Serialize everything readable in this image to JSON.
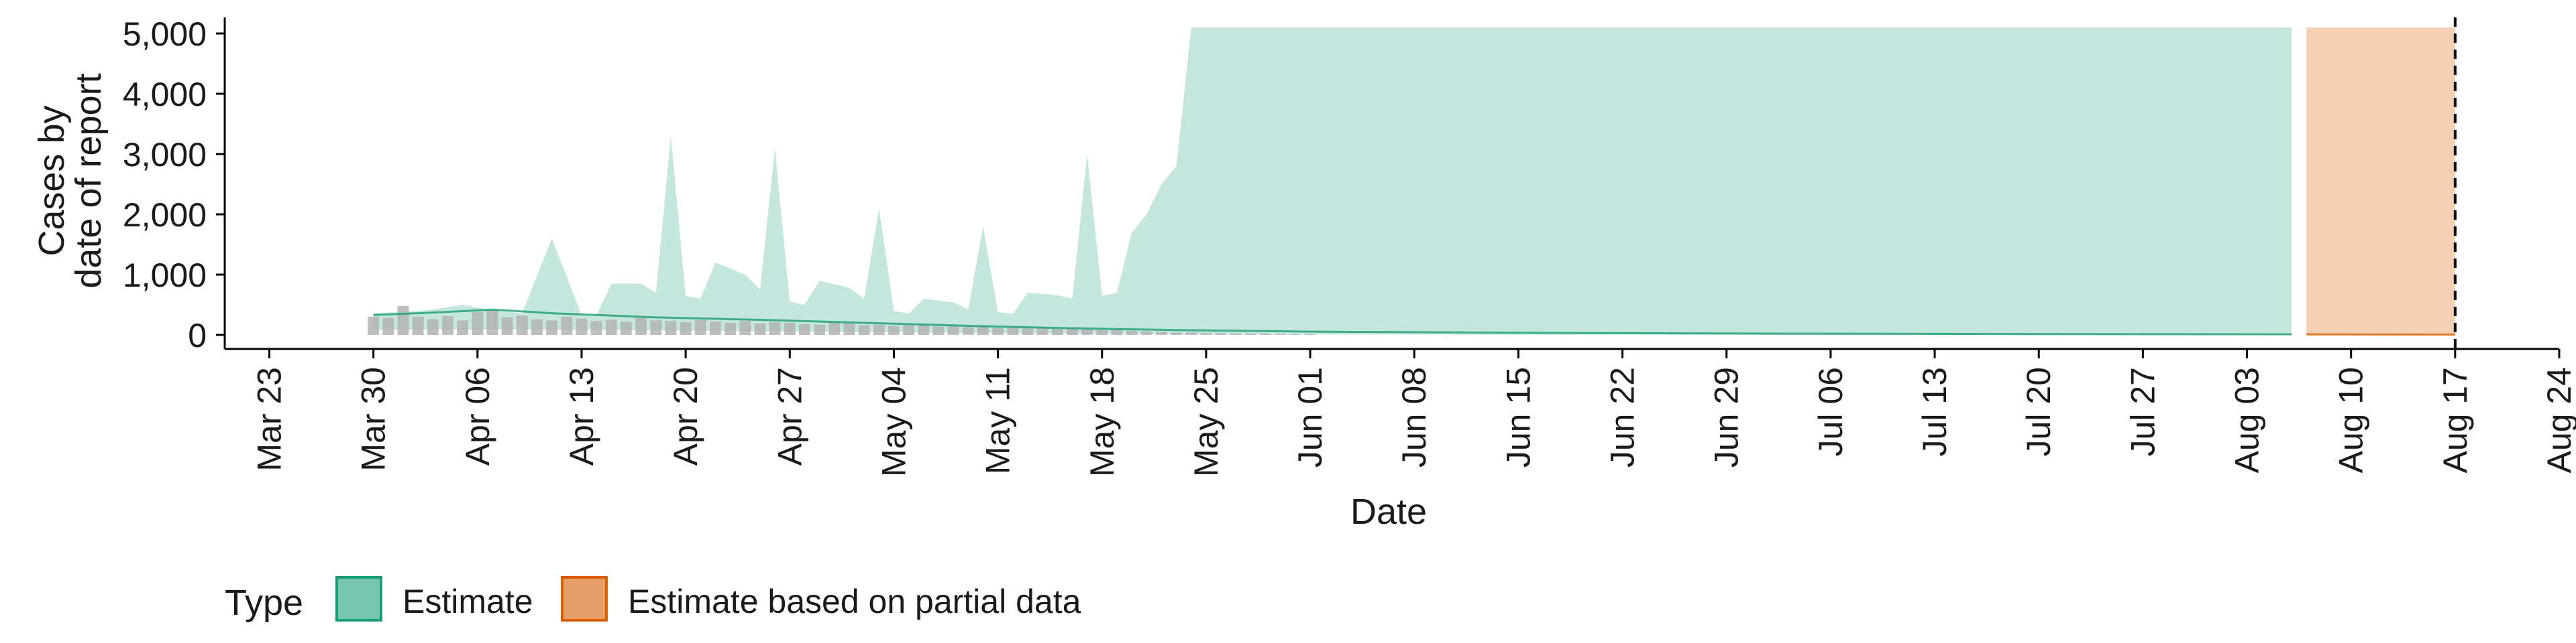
{
  "chart_data": {
    "type": "area",
    "title": "",
    "xlabel": "Date",
    "ylabel_lines": [
      "Cases by",
      "date of report"
    ],
    "ylim": [
      0,
      5300
    ],
    "xlim": [
      "2020-03-20",
      "2020-08-24"
    ],
    "y_ticks": [
      0,
      1000,
      2000,
      3000,
      4000,
      5000
    ],
    "y_tick_labels": [
      "0",
      "1,000",
      "2,000",
      "3,000",
      "4,000",
      "5,000"
    ],
    "x_ticks": [
      "2020-03-23",
      "2020-03-30",
      "2020-04-06",
      "2020-04-13",
      "2020-04-20",
      "2020-04-27",
      "2020-05-04",
      "2020-05-11",
      "2020-05-18",
      "2020-05-25",
      "2020-06-01",
      "2020-06-08",
      "2020-06-15",
      "2020-06-22",
      "2020-06-29",
      "2020-07-06",
      "2020-07-13",
      "2020-07-20",
      "2020-07-27",
      "2020-08-03",
      "2020-08-10",
      "2020-08-17",
      "2020-08-24"
    ],
    "x_tick_labels": [
      "Mar 23",
      "Mar 30",
      "Apr 06",
      "Apr 13",
      "Apr 20",
      "Apr 27",
      "May 04",
      "May 11",
      "May 18",
      "May 25",
      "Jun 01",
      "Jun 08",
      "Jun 15",
      "Jun 22",
      "Jun 29",
      "Jul 06",
      "Jul 13",
      "Jul 20",
      "Jul 27",
      "Aug 03",
      "Aug 10",
      "Aug 17",
      "Aug 24"
    ],
    "grid": false,
    "legend_position": "bottom-left",
    "legend_title": "Type",
    "series": [
      {
        "name": "Estimate",
        "color": "#1b9e77",
        "upper": [
          [
            "2020-03-30",
            360
          ],
          [
            "2020-04-01",
            380
          ],
          [
            "2020-04-03",
            420
          ],
          [
            "2020-04-05",
            500
          ],
          [
            "2020-04-07",
            410
          ],
          [
            "2020-04-09",
            360
          ],
          [
            "2020-04-11",
            1600
          ],
          [
            "2020-04-13",
            330
          ],
          [
            "2020-04-14",
            320
          ],
          [
            "2020-04-15",
            850
          ],
          [
            "2020-04-17",
            850
          ],
          [
            "2020-04-18",
            700
          ],
          [
            "2020-04-19",
            3300
          ],
          [
            "2020-04-20",
            650
          ],
          [
            "2020-04-21",
            600
          ],
          [
            "2020-04-22",
            1200
          ],
          [
            "2020-04-24",
            1000
          ],
          [
            "2020-04-25",
            750
          ],
          [
            "2020-04-26",
            3100
          ],
          [
            "2020-04-27",
            550
          ],
          [
            "2020-04-28",
            500
          ],
          [
            "2020-04-29",
            900
          ],
          [
            "2020-05-01",
            780
          ],
          [
            "2020-05-02",
            600
          ],
          [
            "2020-05-03",
            2100
          ],
          [
            "2020-05-04",
            400
          ],
          [
            "2020-05-05",
            350
          ],
          [
            "2020-05-06",
            600
          ],
          [
            "2020-05-08",
            540
          ],
          [
            "2020-05-09",
            420
          ],
          [
            "2020-05-10",
            1800
          ],
          [
            "2020-05-11",
            380
          ],
          [
            "2020-05-12",
            350
          ],
          [
            "2020-05-13",
            700
          ],
          [
            "2020-05-15",
            660
          ],
          [
            "2020-05-16",
            600
          ],
          [
            "2020-05-17",
            3000
          ],
          [
            "2020-05-18",
            650
          ],
          [
            "2020-05-19",
            700
          ],
          [
            "2020-05-20",
            1700
          ],
          [
            "2020-05-21",
            2000
          ],
          [
            "2020-05-22",
            2500
          ],
          [
            "2020-05-23",
            2800
          ],
          [
            "2020-05-24",
            5100
          ],
          [
            "2020-08-06",
            5100
          ]
        ],
        "lower": [
          [
            "2020-03-30",
            80
          ],
          [
            "2020-04-06",
            90
          ],
          [
            "2020-04-15",
            80
          ],
          [
            "2020-04-25",
            60
          ],
          [
            "2020-05-05",
            40
          ],
          [
            "2020-05-15",
            20
          ],
          [
            "2020-05-25",
            10
          ],
          [
            "2020-06-15",
            5
          ],
          [
            "2020-08-06",
            0
          ]
        ]
      },
      {
        "name": "Estimate based on partial data",
        "color": "#d95f02",
        "upper": [
          [
            "2020-08-07",
            5100
          ],
          [
            "2020-08-17",
            5100
          ]
        ],
        "lower": [
          [
            "2020-08-07",
            0
          ],
          [
            "2020-08-17",
            0
          ]
        ]
      }
    ],
    "median_lines": [
      {
        "series": "Estimate",
        "color": "#1b9e77",
        "points": [
          [
            "2020-03-30",
            330
          ],
          [
            "2020-04-03",
            370
          ],
          [
            "2020-04-07",
            420
          ],
          [
            "2020-04-11",
            360
          ],
          [
            "2020-04-18",
            290
          ],
          [
            "2020-04-25",
            250
          ],
          [
            "2020-05-02",
            200
          ],
          [
            "2020-05-09",
            150
          ],
          [
            "2020-05-16",
            110
          ],
          [
            "2020-05-23",
            80
          ],
          [
            "2020-06-01",
            55
          ],
          [
            "2020-06-15",
            35
          ],
          [
            "2020-07-01",
            22
          ],
          [
            "2020-07-20",
            14
          ],
          [
            "2020-08-06",
            10
          ]
        ]
      },
      {
        "series": "Estimate based on partial data",
        "color": "#d95f02",
        "points": [
          [
            "2020-08-07",
            8
          ],
          [
            "2020-08-17",
            6
          ]
        ]
      }
    ],
    "observed": {
      "color": "#b3b3b3",
      "start": "2020-03-30",
      "values": [
        300,
        280,
        480,
        300,
        260,
        310,
        240,
        380,
        420,
        290,
        320,
        260,
        240,
        300,
        270,
        230,
        250,
        220,
        280,
        240,
        230,
        210,
        250,
        220,
        200,
        230,
        190,
        210,
        200,
        180,
        170,
        210,
        190,
        160,
        170,
        150,
        160,
        180,
        140,
        150,
        130,
        150,
        120,
        140,
        110,
        130,
        100,
        120,
        90,
        80,
        100,
        70,
        60,
        50,
        40,
        40,
        30,
        30,
        25,
        20,
        20,
        15,
        10,
        10
      ]
    },
    "vline": {
      "date": "2020-08-17",
      "style": "dashed",
      "color": "#000000"
    }
  },
  "legend": {
    "title": "Type",
    "items": [
      {
        "label": "Estimate",
        "color": "#1b9e77"
      },
      {
        "label": "Estimate based on partial data",
        "color": "#d95f02"
      }
    ]
  }
}
